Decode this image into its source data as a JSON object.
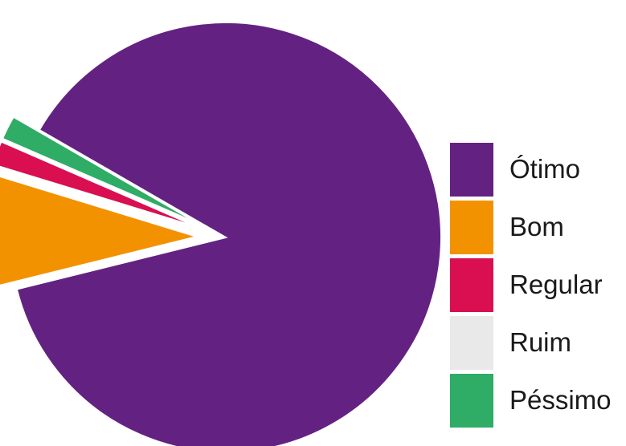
{
  "chart_data": {
    "type": "pie",
    "title": "",
    "categories": [
      "Ótimo",
      "Bom",
      "Regular",
      "Ruim",
      "Péssimo"
    ],
    "values": [
      87.8,
      8.6,
      1.8,
      0.0,
      1.8
    ],
    "colors": [
      "#632282",
      "#f39200",
      "#d90f51",
      "#e9e9e9",
      "#2fac66"
    ],
    "exploded_slices": [
      "Bom",
      "Regular",
      "Ruim",
      "Péssimo"
    ],
    "legend": {
      "position": "right",
      "items": [
        {
          "label": "Ótimo",
          "color": "#632282"
        },
        {
          "label": "Bom",
          "color": "#f39200"
        },
        {
          "label": "Regular",
          "color": "#d90f51"
        },
        {
          "label": "Ruim",
          "color": "#e9e9e9"
        },
        {
          "label": "Péssimo",
          "color": "#2fac66"
        }
      ]
    }
  }
}
